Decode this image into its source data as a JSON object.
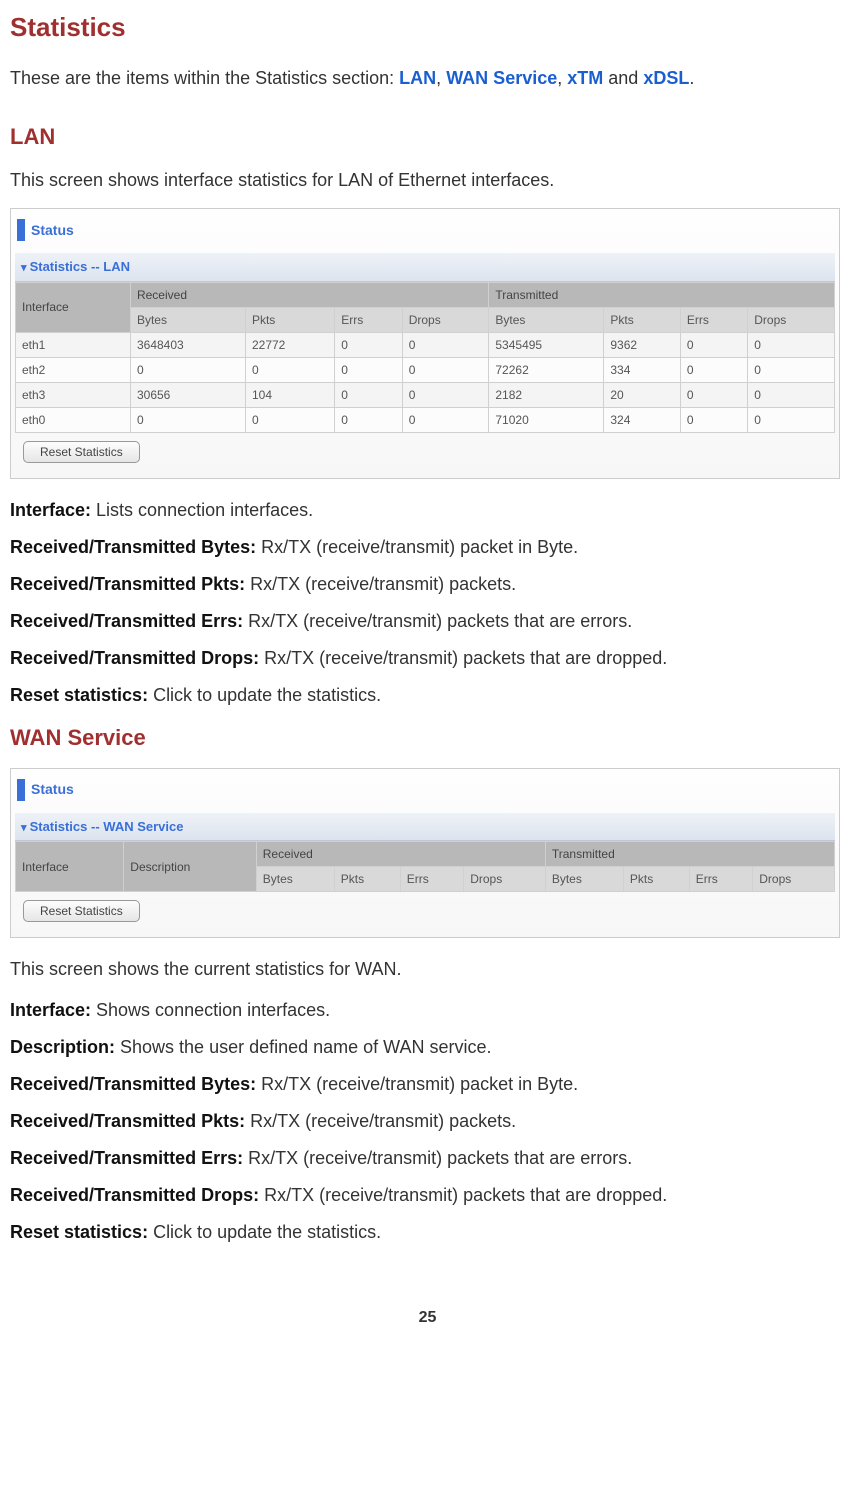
{
  "title": "Statistics",
  "intro_prefix": "These are the items within the Statistics section: ",
  "links": [
    "LAN",
    "WAN Service",
    "xTM",
    "xDSL"
  ],
  "intro_suffix": ".",
  "lan": {
    "heading": "LAN",
    "desc": "This screen shows interface statistics for LAN of Ethernet interfaces.",
    "status": "Status",
    "subtitle": "Statistics -- LAN",
    "interface_col": "Interface",
    "rx_label": "Received",
    "tx_label": "Transmitted",
    "cols": [
      "Bytes",
      "Pkts",
      "Errs",
      "Drops",
      "Bytes",
      "Pkts",
      "Errs",
      "Drops"
    ],
    "rows": [
      {
        "if": "eth1",
        "c": [
          "3648403",
          "22772",
          "0",
          "0",
          "5345495",
          "9362",
          "0",
          "0"
        ]
      },
      {
        "if": "eth2",
        "c": [
          "0",
          "0",
          "0",
          "0",
          "72262",
          "334",
          "0",
          "0"
        ]
      },
      {
        "if": "eth3",
        "c": [
          "30656",
          "104",
          "0",
          "0",
          "2182",
          "20",
          "0",
          "0"
        ]
      },
      {
        "if": "eth0",
        "c": [
          "0",
          "0",
          "0",
          "0",
          "71020",
          "324",
          "0",
          "0"
        ]
      }
    ],
    "reset": "Reset Statistics"
  },
  "defs1": [
    {
      "t": "Interface:",
      "d": " Lists connection interfaces."
    },
    {
      "t": "Received/Transmitted Bytes:",
      "d": " Rx/TX (receive/transmit) packet in Byte."
    },
    {
      "t": "Received/Transmitted Pkts:",
      "d": " Rx/TX (receive/transmit) packets."
    },
    {
      "t": "Received/Transmitted Errs:",
      "d": " Rx/TX (receive/transmit) packets that are errors."
    },
    {
      "t": "Received/Transmitted Drops:",
      "d": " Rx/TX (receive/transmit) packets that are dropped."
    },
    {
      "t": "Reset statistics:",
      "d": " Click to update the statistics."
    }
  ],
  "wan": {
    "heading": "WAN Service",
    "status": "Status",
    "subtitle": "Statistics -- WAN Service",
    "interface_col": "Interface",
    "desc_col": "Description",
    "rx_label": "Received",
    "tx_label": "Transmitted",
    "cols": [
      "Bytes",
      "Pkts",
      "Errs",
      "Drops",
      "Bytes",
      "Pkts",
      "Errs",
      "Drops"
    ],
    "reset": "Reset Statistics",
    "after": "This screen shows the current statistics for WAN."
  },
  "defs2": [
    {
      "t": "Interface:",
      "d": " Shows connection interfaces."
    },
    {
      "t": "Description:",
      "d": " Shows the user defined name of WAN service."
    },
    {
      "t": "Received/Transmitted Bytes:",
      "d": " Rx/TX (receive/transmit) packet in Byte."
    },
    {
      "t": "Received/Transmitted Pkts:",
      "d": " Rx/TX (receive/transmit) packets."
    },
    {
      "t": "Received/Transmitted Errs:",
      "d": " Rx/TX (receive/transmit) packets that are errors."
    },
    {
      "t": "Received/Transmitted Drops:",
      "d": " Rx/TX (receive/transmit) packets that are dropped."
    },
    {
      "t": "Reset statistics:",
      "d": " Click to update the statistics."
    }
  ],
  "page_number": "25"
}
